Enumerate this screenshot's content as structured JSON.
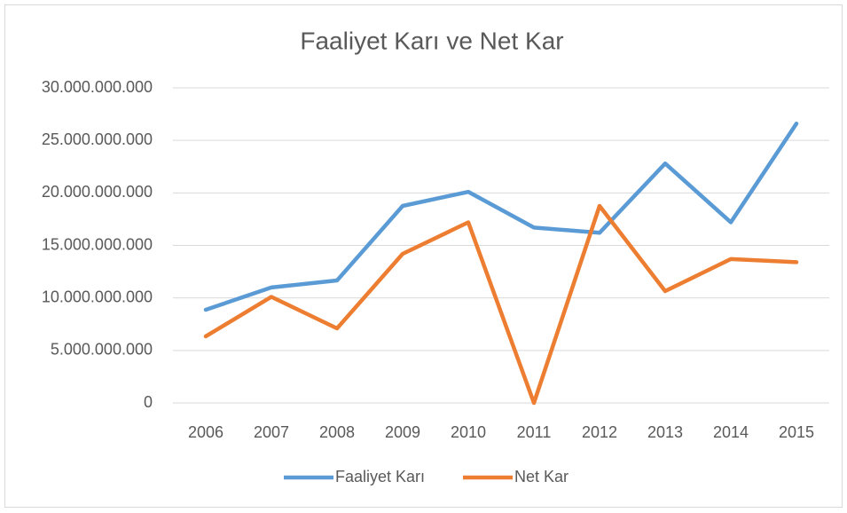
{
  "chart_data": {
    "type": "line",
    "title": "Faaliyet Karı ve Net Kar",
    "categories": [
      "2006",
      "2007",
      "2008",
      "2009",
      "2010",
      "2011",
      "2012",
      "2013",
      "2014",
      "2015"
    ],
    "series": [
      {
        "name": "Faaliyet Karı",
        "color": "#5b9bd5",
        "values": [
          8870000000,
          11000000000,
          11660000000,
          18760000000,
          20100000000,
          16700000000,
          16200000000,
          22800000000,
          17200000000,
          26600000000
        ]
      },
      {
        "name": "Net Kar",
        "color": "#ed7d31",
        "values": [
          6340000000,
          10100000000,
          7100000000,
          14200000000,
          17200000000,
          0,
          18760000000,
          10650000000,
          13700000000,
          13400000000
        ]
      }
    ],
    "ylim": [
      0,
      30000000000
    ],
    "yticks": [
      0,
      {
        "value": 5000000000,
        "label": "5.000.000.000"
      },
      {
        "value": 10000000000,
        "label": "10.000.000.000"
      },
      {
        "value": 15000000000,
        "label": "15.000.000.000"
      },
      {
        "value": 20000000000,
        "label": "20.000.000.000"
      },
      {
        "value": 25000000000,
        "label": "25.000.000.000"
      },
      {
        "value": 30000000000,
        "label": "30.000.000.000"
      }
    ],
    "grid": true,
    "legend": "bottom"
  }
}
